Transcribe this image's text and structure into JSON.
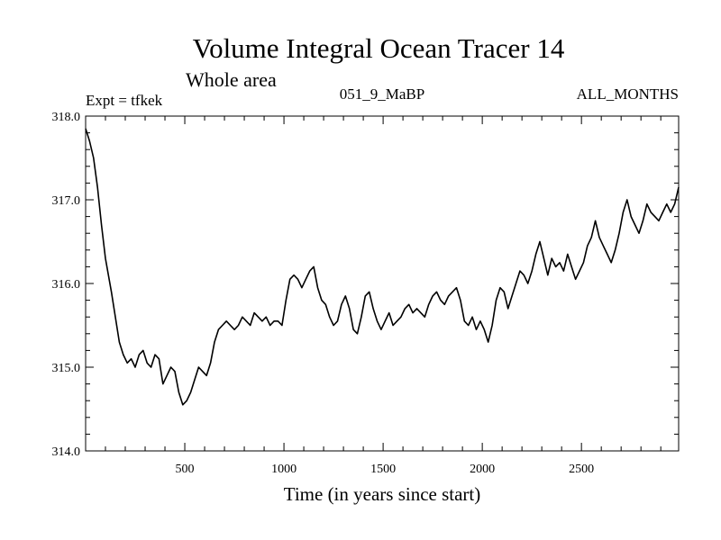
{
  "chart_data": {
    "type": "line",
    "title": "Volume Integral Ocean Tracer 14",
    "subtitle": "Whole area",
    "annotations": {
      "left": "Expt = tfkek",
      "center": "051_9_MaBP",
      "right": "ALL_MONTHS"
    },
    "xlabel": "Time (in years since start)",
    "ylabel": "",
    "xlim": [
      0,
      2990
    ],
    "ylim": [
      314.0,
      318.0
    ],
    "x_ticks": [
      {
        "value": 500,
        "label": "500"
      },
      {
        "value": 1000,
        "label": "1000"
      },
      {
        "value": 1500,
        "label": "1500"
      },
      {
        "value": 2000,
        "label": "2000"
      },
      {
        "value": 2500,
        "label": "2500"
      }
    ],
    "y_ticks": [
      {
        "value": 314.0,
        "label": "314.0"
      },
      {
        "value": 315.0,
        "label": "315.0"
      },
      {
        "value": 316.0,
        "label": "316.0"
      },
      {
        "value": 317.0,
        "label": "317.0"
      },
      {
        "value": 318.0,
        "label": "318.0"
      }
    ],
    "grid": false,
    "series": [
      {
        "color": "#000000",
        "points": [
          [
            0,
            317.85
          ],
          [
            20,
            317.7
          ],
          [
            40,
            317.5
          ],
          [
            60,
            317.15
          ],
          [
            80,
            316.7
          ],
          [
            100,
            316.3
          ],
          [
            130,
            315.9
          ],
          [
            150,
            315.6
          ],
          [
            170,
            315.3
          ],
          [
            190,
            315.15
          ],
          [
            210,
            315.05
          ],
          [
            230,
            315.1
          ],
          [
            250,
            315.0
          ],
          [
            270,
            315.15
          ],
          [
            290,
            315.2
          ],
          [
            310,
            315.05
          ],
          [
            330,
            315.0
          ],
          [
            350,
            315.15
          ],
          [
            370,
            315.1
          ],
          [
            390,
            314.8
          ],
          [
            410,
            314.9
          ],
          [
            430,
            315.0
          ],
          [
            450,
            314.95
          ],
          [
            470,
            314.7
          ],
          [
            490,
            314.55
          ],
          [
            510,
            314.6
          ],
          [
            530,
            314.7
          ],
          [
            550,
            314.85
          ],
          [
            570,
            315.0
          ],
          [
            590,
            314.95
          ],
          [
            610,
            314.9
          ],
          [
            630,
            315.05
          ],
          [
            650,
            315.3
          ],
          [
            670,
            315.45
          ],
          [
            690,
            315.5
          ],
          [
            710,
            315.55
          ],
          [
            730,
            315.5
          ],
          [
            750,
            315.45
          ],
          [
            770,
            315.5
          ],
          [
            790,
            315.6
          ],
          [
            810,
            315.55
          ],
          [
            830,
            315.5
          ],
          [
            850,
            315.65
          ],
          [
            870,
            315.6
          ],
          [
            890,
            315.55
          ],
          [
            910,
            315.6
          ],
          [
            930,
            315.5
          ],
          [
            950,
            315.55
          ],
          [
            970,
            315.55
          ],
          [
            990,
            315.5
          ],
          [
            1010,
            315.8
          ],
          [
            1030,
            316.05
          ],
          [
            1050,
            316.1
          ],
          [
            1070,
            316.05
          ],
          [
            1090,
            315.95
          ],
          [
            1110,
            316.05
          ],
          [
            1130,
            316.15
          ],
          [
            1150,
            316.2
          ],
          [
            1170,
            315.95
          ],
          [
            1190,
            315.8
          ],
          [
            1210,
            315.75
          ],
          [
            1230,
            315.6
          ],
          [
            1250,
            315.5
          ],
          [
            1270,
            315.55
          ],
          [
            1290,
            315.75
          ],
          [
            1310,
            315.85
          ],
          [
            1330,
            315.7
          ],
          [
            1350,
            315.45
          ],
          [
            1370,
            315.4
          ],
          [
            1390,
            315.6
          ],
          [
            1410,
            315.85
          ],
          [
            1430,
            315.9
          ],
          [
            1450,
            315.7
          ],
          [
            1470,
            315.55
          ],
          [
            1490,
            315.45
          ],
          [
            1510,
            315.55
          ],
          [
            1530,
            315.65
          ],
          [
            1550,
            315.5
          ],
          [
            1570,
            315.55
          ],
          [
            1590,
            315.6
          ],
          [
            1610,
            315.7
          ],
          [
            1630,
            315.75
          ],
          [
            1650,
            315.65
          ],
          [
            1670,
            315.7
          ],
          [
            1690,
            315.65
          ],
          [
            1710,
            315.6
          ],
          [
            1730,
            315.75
          ],
          [
            1750,
            315.85
          ],
          [
            1770,
            315.9
          ],
          [
            1790,
            315.8
          ],
          [
            1810,
            315.75
          ],
          [
            1830,
            315.85
          ],
          [
            1850,
            315.9
          ],
          [
            1870,
            315.95
          ],
          [
            1890,
            315.8
          ],
          [
            1910,
            315.55
          ],
          [
            1930,
            315.5
          ],
          [
            1950,
            315.6
          ],
          [
            1970,
            315.45
          ],
          [
            1990,
            315.55
          ],
          [
            2010,
            315.45
          ],
          [
            2030,
            315.3
          ],
          [
            2050,
            315.5
          ],
          [
            2070,
            315.8
          ],
          [
            2090,
            315.95
          ],
          [
            2110,
            315.9
          ],
          [
            2130,
            315.7
          ],
          [
            2150,
            315.85
          ],
          [
            2170,
            316.0
          ],
          [
            2190,
            316.15
          ],
          [
            2210,
            316.1
          ],
          [
            2230,
            316.0
          ],
          [
            2250,
            316.15
          ],
          [
            2270,
            316.35
          ],
          [
            2290,
            316.5
          ],
          [
            2310,
            316.3
          ],
          [
            2330,
            316.1
          ],
          [
            2350,
            316.3
          ],
          [
            2370,
            316.2
          ],
          [
            2390,
            316.25
          ],
          [
            2410,
            316.15
          ],
          [
            2430,
            316.35
          ],
          [
            2450,
            316.2
          ],
          [
            2470,
            316.05
          ],
          [
            2490,
            316.15
          ],
          [
            2510,
            316.25
          ],
          [
            2530,
            316.45
          ],
          [
            2550,
            316.55
          ],
          [
            2570,
            316.75
          ],
          [
            2590,
            316.55
          ],
          [
            2610,
            316.45
          ],
          [
            2630,
            316.35
          ],
          [
            2650,
            316.25
          ],
          [
            2670,
            316.4
          ],
          [
            2690,
            316.6
          ],
          [
            2710,
            316.85
          ],
          [
            2730,
            317.0
          ],
          [
            2750,
            316.8
          ],
          [
            2770,
            316.7
          ],
          [
            2790,
            316.6
          ],
          [
            2810,
            316.75
          ],
          [
            2830,
            316.95
          ],
          [
            2850,
            316.85
          ],
          [
            2870,
            316.8
          ],
          [
            2890,
            316.75
          ],
          [
            2910,
            316.85
          ],
          [
            2930,
            316.95
          ],
          [
            2950,
            316.85
          ],
          [
            2970,
            316.95
          ],
          [
            2990,
            317.15
          ]
        ]
      }
    ]
  }
}
